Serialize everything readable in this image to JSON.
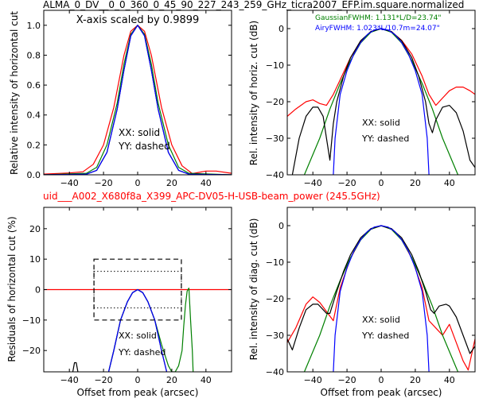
{
  "header": {
    "top_title": "ALMA_0_DV__0_0_360_0_45_90_227_243_259_GHz_ticra2007_EFP.im.square.normalized",
    "mid_title": "uid___A002_X680f8a_X399_APC-DV05-H-USB-beam_power (245.5GHz)",
    "mid_title_color": "#ff0000"
  },
  "colors": {
    "red": "#ff0000",
    "green": "#008000",
    "blue": "#0000ff",
    "black": "#000000"
  },
  "chart_data": [
    {
      "id": "tl",
      "type": "line",
      "ylabel": "Relative intensity of horizontal cut",
      "xlabel": "",
      "xlim": [
        -55,
        55
      ],
      "ylim": [
        0.0,
        1.1
      ],
      "xticks": [
        -40,
        -20,
        0,
        20,
        40
      ],
      "yticks": [
        0.0,
        0.2,
        0.4,
        0.6,
        0.8,
        1.0
      ],
      "ytick_labels": [
        "0.0",
        "0.2",
        "0.4",
        "0.6",
        "0.8",
        "1.0"
      ],
      "annotations": [
        "X-axis scaled by 0.9899",
        "XX: solid",
        "YY: dashed"
      ],
      "series": [
        {
          "color": "red",
          "x": [
            -55,
            -40,
            -32,
            -26,
            -20,
            -14,
            -8,
            -4,
            0,
            4,
            8,
            14,
            20,
            26,
            32,
            40,
            46,
            55
          ],
          "y": [
            0.005,
            0.012,
            0.02,
            0.07,
            0.2,
            0.45,
            0.8,
            0.96,
            1.0,
            0.96,
            0.8,
            0.45,
            0.2,
            0.06,
            0.008,
            0.025,
            0.025,
            0.01
          ]
        },
        {
          "color": "green",
          "x": [
            -55,
            -30,
            -24,
            -18,
            -12,
            -8,
            -4,
            0,
            4,
            8,
            12,
            18,
            24,
            30,
            55
          ],
          "y": [
            0.0,
            0.01,
            0.05,
            0.2,
            0.48,
            0.74,
            0.94,
            1.0,
            0.94,
            0.74,
            0.48,
            0.2,
            0.05,
            0.01,
            0.0
          ]
        },
        {
          "color": "black",
          "x": [
            -55,
            -30,
            -24,
            -18,
            -12,
            -8,
            -4,
            0,
            4,
            8,
            12,
            18,
            24,
            30,
            55
          ],
          "y": [
            0.0,
            0.004,
            0.03,
            0.15,
            0.44,
            0.7,
            0.93,
            1.0,
            0.93,
            0.7,
            0.44,
            0.15,
            0.03,
            0.004,
            0.0
          ]
        },
        {
          "color": "blue",
          "x": [
            -55,
            -30,
            -24,
            -18,
            -12,
            -8,
            -4,
            0,
            4,
            8,
            12,
            18,
            24,
            30,
            55
          ],
          "y": [
            0.0,
            0.004,
            0.03,
            0.15,
            0.44,
            0.7,
            0.93,
            1.0,
            0.93,
            0.7,
            0.44,
            0.15,
            0.03,
            0.004,
            0.0
          ]
        }
      ]
    },
    {
      "id": "tr",
      "type": "line",
      "ylabel": "Rel. intensity of horiz. cut (dB)",
      "xlabel": "",
      "xlim": [
        -55,
        55
      ],
      "ylim": [
        -40,
        5
      ],
      "xticks": [
        -40,
        -20,
        0,
        20,
        40
      ],
      "yticks": [
        -40,
        -30,
        -20,
        -10,
        0
      ],
      "ytick_labels": [
        "−40",
        "−30",
        "−20",
        "−10",
        "0"
      ],
      "legend_text": [
        {
          "text": "GaussianFWHM: 1.131*L/D=23.74\"",
          "color": "green"
        },
        {
          "text": "AiryFWHM: 1.023*L/10.7m=24.07\"",
          "color": "blue"
        }
      ],
      "annotations": [
        "XX: solid",
        "YY: dashed"
      ],
      "series": [
        {
          "color": "red",
          "x": [
            -55,
            -50,
            -44,
            -40,
            -36,
            -32,
            -28,
            -24,
            -18,
            -12,
            -6,
            0,
            6,
            12,
            18,
            24,
            28,
            32,
            36,
            40,
            44,
            48,
            52,
            55
          ],
          "y": [
            -24,
            -22,
            -20,
            -19.5,
            -20.5,
            -21,
            -18,
            -14,
            -8,
            -3.5,
            -0.8,
            0,
            -0.8,
            -3.2,
            -7,
            -13,
            -18,
            -21,
            -19,
            -17,
            -16,
            -16,
            -17,
            -18
          ]
        },
        {
          "color": "green",
          "x": [
            -45,
            -36,
            -30,
            -24,
            -18,
            -12,
            -6,
            0,
            6,
            12,
            18,
            24,
            30,
            36,
            45
          ],
          "y": [
            -40,
            -30,
            -22,
            -15,
            -8.8,
            -3.9,
            -1,
            0,
            -1,
            -3.9,
            -8.8,
            -15,
            -22,
            -30,
            -40
          ]
        },
        {
          "color": "black",
          "x": [
            -52,
            -48,
            -44,
            -40,
            -37,
            -34,
            -32,
            -30,
            -28,
            -26,
            -22,
            -18,
            -12,
            -6,
            0,
            6,
            12,
            18,
            22,
            26,
            28,
            30,
            32,
            36,
            40,
            44,
            48,
            52,
            55
          ],
          "y": [
            -40,
            -30,
            -24,
            -21.5,
            -21.5,
            -24,
            -30,
            -36,
            -26,
            -20,
            -13,
            -8,
            -3.3,
            -0.8,
            0,
            -0.8,
            -3.3,
            -8,
            -13,
            -20,
            -26,
            -28.5,
            -25,
            -21.5,
            -21,
            -23,
            -28,
            -36,
            -38
          ]
        },
        {
          "color": "blue",
          "x": [
            -28,
            -27,
            -24,
            -20,
            -16,
            -12,
            -8,
            -4,
            0,
            4,
            8,
            12,
            16,
            20,
            24,
            27,
            28
          ],
          "y": [
            -40,
            -30,
            -18,
            -11.5,
            -7,
            -3.8,
            -1.6,
            -0.4,
            0,
            -0.4,
            -1.6,
            -3.8,
            -7,
            -11.5,
            -18,
            -30,
            -40
          ]
        }
      ]
    },
    {
      "id": "bl",
      "type": "line",
      "ylabel": "Residuals of horizontal cut (%)",
      "xlabel": "Offset from peak (arcsec)",
      "xlim": [
        -55,
        55
      ],
      "ylim": [
        -27,
        27
      ],
      "xticks": [
        -40,
        -20,
        0,
        20,
        40
      ],
      "yticks": [
        -20,
        -10,
        0,
        10,
        20
      ],
      "ytick_labels": [
        "−20",
        "−10",
        "0",
        "10",
        "20"
      ],
      "annotations": [
        "XX: solid",
        "YY: dashed"
      ],
      "series": [
        {
          "color": "red",
          "x": [
            -55,
            55
          ],
          "y": [
            0,
            0
          ]
        },
        {
          "color": "green",
          "x": [
            -17,
            -14,
            -10,
            -6,
            -3,
            0,
            3,
            6,
            10,
            14,
            18,
            20,
            22,
            24,
            26,
            27,
            28,
            29,
            30,
            31,
            32,
            32.5
          ],
          "y": [
            -27,
            -20,
            -10,
            -4,
            -1,
            0,
            -1,
            -4,
            -10,
            -18,
            -25,
            -27,
            -27,
            -25,
            -20,
            -12,
            -5,
            -0.5,
            0.5,
            -10,
            -20,
            -27
          ]
        },
        {
          "color": "black",
          "x": [
            -17,
            -14,
            -10,
            -6,
            -3,
            0,
            3,
            6,
            10,
            14,
            17
          ],
          "y": [
            -27,
            -20,
            -10,
            -4,
            -1,
            0,
            -1,
            -4,
            -10,
            -20,
            -27
          ]
        },
        {
          "color": "blue",
          "x": [
            -17,
            -14,
            -10,
            -6,
            -3,
            0,
            3,
            6,
            10,
            14,
            17
          ],
          "y": [
            -27,
            -20,
            -10,
            -4,
            -1,
            0,
            -1,
            -4,
            -10,
            -20,
            -27
          ]
        },
        {
          "color": "black",
          "x": [
            -38,
            -37,
            -36,
            -35
          ],
          "y": [
            -27,
            -24,
            -24,
            -27
          ]
        }
      ],
      "boxes": [
        {
          "style": "dashed",
          "x": [
            -25.6,
            25.6
          ],
          "y": [
            -10,
            10
          ]
        },
        {
          "style": "dotted",
          "x": [
            -25.6,
            25.6
          ],
          "y": [
            -6,
            6
          ]
        }
      ]
    },
    {
      "id": "br",
      "type": "line",
      "ylabel": "Rel. intensity of diag. cut (dB)",
      "xlabel": "Offset from peak (arcsec)",
      "xlim": [
        -55,
        55
      ],
      "ylim": [
        -40,
        5
      ],
      "xticks": [
        -40,
        -20,
        0,
        20,
        40
      ],
      "yticks": [
        -40,
        -30,
        -20,
        -10,
        0
      ],
      "ytick_labels": [
        "−40",
        "−30",
        "−20",
        "−10",
        "0"
      ],
      "annotations": [
        "XX: solid",
        "YY: dashed"
      ],
      "series": [
        {
          "color": "red",
          "x": [
            -55,
            -50,
            -44,
            -40,
            -36,
            -32,
            -28,
            -24,
            -18,
            -12,
            -6,
            0,
            6,
            12,
            18,
            24,
            28,
            32,
            36,
            40,
            44,
            48,
            51,
            55
          ],
          "y": [
            -32,
            -28,
            -21.5,
            -19.5,
            -21,
            -23.5,
            -26,
            -17,
            -9,
            -3.8,
            -1,
            0,
            -1,
            -3.8,
            -9,
            -17,
            -26,
            -28,
            -30,
            -27,
            -32,
            -37,
            -39.5,
            -31
          ]
        },
        {
          "color": "green",
          "x": [
            -45,
            -36,
            -30,
            -24,
            -18,
            -12,
            -6,
            0,
            6,
            12,
            18,
            24,
            30,
            36,
            45
          ],
          "y": [
            -40,
            -30,
            -22,
            -15,
            -8.8,
            -3.9,
            -1,
            0,
            -1,
            -3.9,
            -8.8,
            -15,
            -22,
            -30,
            -40
          ]
        },
        {
          "color": "black",
          "x": [
            -55,
            -52,
            -48,
            -44,
            -40,
            -37,
            -34,
            -32,
            -30,
            -26,
            -22,
            -18,
            -12,
            -6,
            0,
            6,
            12,
            18,
            22,
            26,
            29,
            31,
            34,
            38,
            40,
            44,
            48,
            52,
            55
          ],
          "y": [
            -31,
            -34,
            -28,
            -23,
            -21.5,
            -21.5,
            -23,
            -24,
            -24,
            -18,
            -12.5,
            -8,
            -3.3,
            -0.8,
            0,
            -0.8,
            -3.3,
            -8,
            -12.5,
            -18,
            -23,
            -24,
            -22,
            -21.5,
            -22,
            -25,
            -30,
            -35,
            -33
          ]
        },
        {
          "color": "blue",
          "x": [
            -28,
            -27,
            -24,
            -20,
            -16,
            -12,
            -8,
            -4,
            0,
            4,
            8,
            12,
            16,
            20,
            24,
            27,
            28
          ],
          "y": [
            -40,
            -30,
            -18,
            -11.5,
            -7,
            -3.8,
            -1.6,
            -0.4,
            0,
            -0.4,
            -1.6,
            -3.8,
            -7,
            -11.5,
            -18,
            -30,
            -40
          ]
        }
      ]
    }
  ]
}
